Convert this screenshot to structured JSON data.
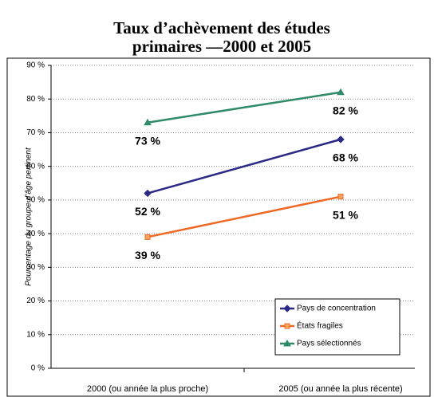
{
  "chart_data": {
    "type": "line",
    "title": [
      "Taux d’achèvement des études",
      "primaires —2000 et 2005"
    ],
    "y_label": "Pourcentage du groupe d’âge pertinent",
    "categories": [
      "2000 (ou année la plus proche)",
      "2005 (ou année la plus récente)"
    ],
    "series": [
      {
        "name": "Pays de concentration",
        "color": "#2b2b86",
        "marker": "diamond",
        "values": [
          52,
          68
        ],
        "value_labels": [
          "52 %",
          "68 %"
        ]
      },
      {
        "name": "États fragiles",
        "color": "#ee6a24",
        "marker": "square",
        "values": [
          39,
          51
        ],
        "value_labels": [
          "39 %",
          "51 %"
        ]
      },
      {
        "name": "Pays sélectionnés",
        "color": "#2f8a68",
        "marker": "triangle",
        "values": [
          73,
          82
        ],
        "value_labels": [
          "73 %",
          "82 %"
        ]
      }
    ],
    "ylim": [
      0,
      90
    ],
    "yticks": [
      {
        "value": 0,
        "label": "0 %"
      },
      {
        "value": 10,
        "label": "10 %"
      },
      {
        "value": 20,
        "label": "20 %"
      },
      {
        "value": 30,
        "label": "30 %"
      },
      {
        "value": 40,
        "label": "40 %"
      },
      {
        "value": 50,
        "label": "50 %"
      },
      {
        "value": 60,
        "label": "60 %"
      },
      {
        "value": 70,
        "label": "70 %"
      },
      {
        "value": 80,
        "label": "80 %"
      },
      {
        "value": 90,
        "label": "90 %"
      }
    ],
    "grid": true,
    "legend": "lower right"
  }
}
